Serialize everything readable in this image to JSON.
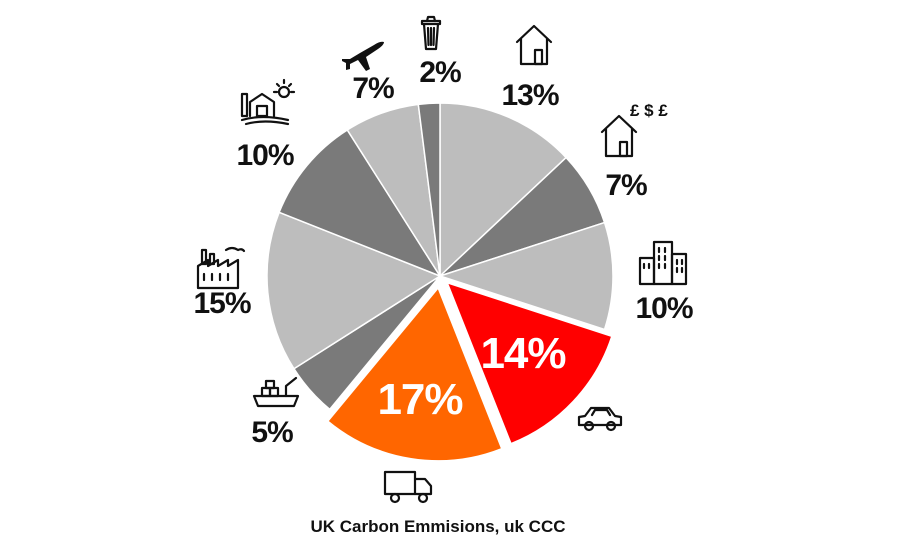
{
  "chart_data": {
    "type": "pie",
    "title": "UK Carbon Emmisions, uk CCC",
    "slices": [
      {
        "label": "13%",
        "value": 13,
        "icon": "house-icon",
        "color": "#bdbdbd"
      },
      {
        "label": "7%",
        "value": 7,
        "icon": "house-money-icon",
        "color": "#7a7a7a"
      },
      {
        "label": "10%",
        "value": 10,
        "icon": "buildings-icon",
        "color": "#bdbdbd"
      },
      {
        "label": "14%",
        "value": 14,
        "icon": "car-icon",
        "color": "#ff0000"
      },
      {
        "label": "17%",
        "value": 17,
        "icon": "truck-icon",
        "color": "#ff6600"
      },
      {
        "label": "5%",
        "value": 5,
        "icon": "ship-icon",
        "color": "#7a7a7a"
      },
      {
        "label": "15%",
        "value": 15,
        "icon": "factory-icon",
        "color": "#bdbdbd"
      },
      {
        "label": "10%",
        "value": 10,
        "icon": "farm-icon",
        "color": "#7a7a7a"
      },
      {
        "label": "7%",
        "value": 7,
        "icon": "plane-icon",
        "color": "#bdbdbd"
      },
      {
        "label": "2%",
        "value": 2,
        "icon": "bin-icon",
        "color": "#7a7a7a"
      }
    ],
    "legend": "none"
  }
}
